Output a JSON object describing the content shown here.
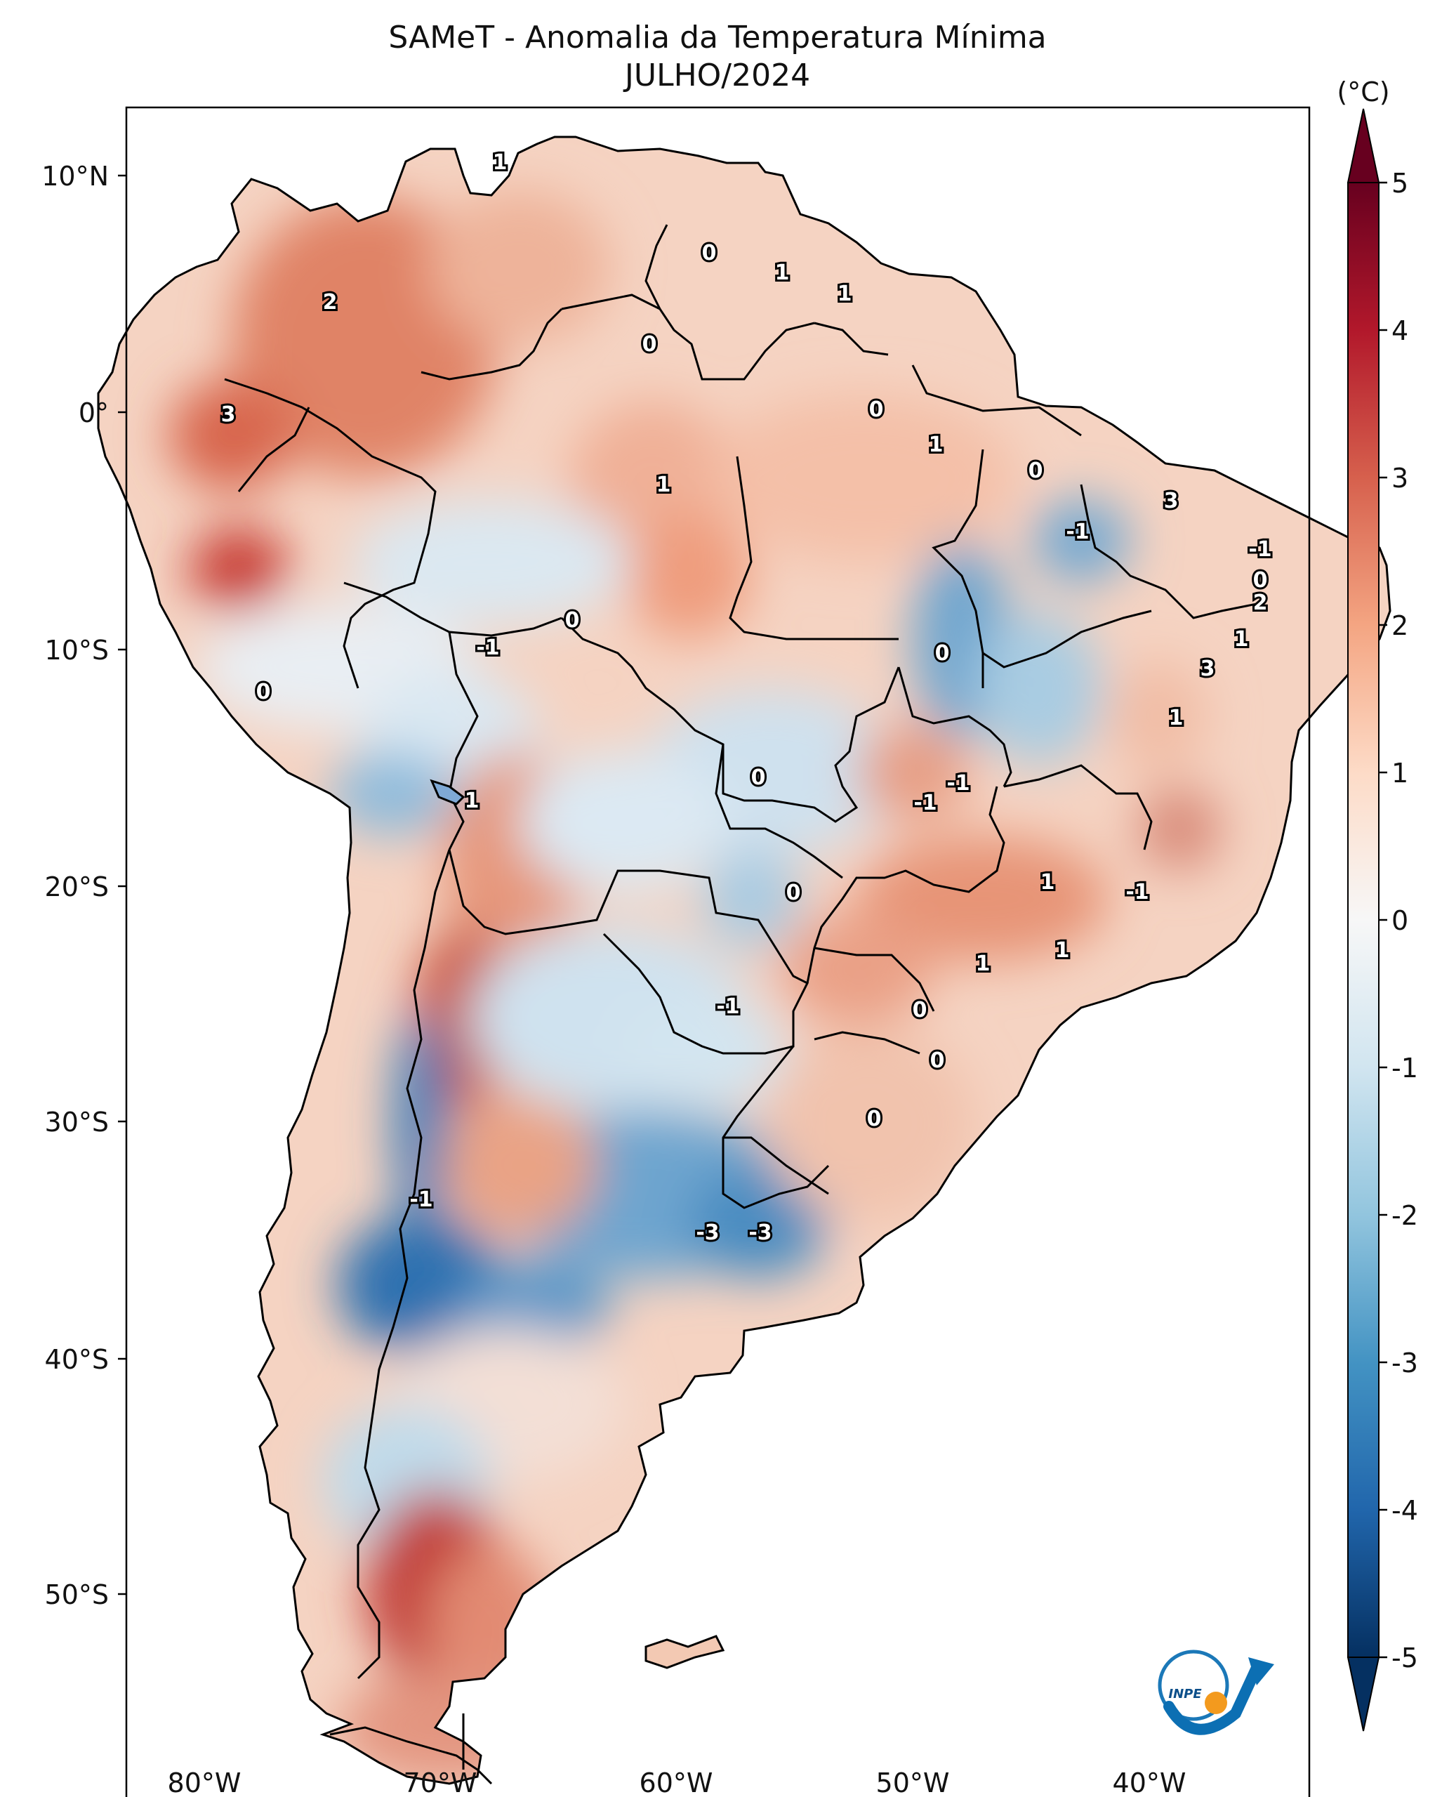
{
  "title": "SAMeT - Anomalia da Temperatura Mínima",
  "subtitle": "JULHO/2024",
  "colorbar": {
    "unit_label": "(°C)",
    "ticks": [
      "5",
      "4",
      "3",
      "2",
      "1",
      "0",
      "-1",
      "-2",
      "-3",
      "-4",
      "-5"
    ],
    "range": [
      -5,
      5
    ],
    "colors": [
      "#053061",
      "#2166ac",
      "#4393c3",
      "#92c5de",
      "#d1e5f0",
      "#f7f7f7",
      "#fddbc7",
      "#f4a582",
      "#d6604d",
      "#b2182b",
      "#67001f"
    ]
  },
  "axes": {
    "lat_ticks": [
      "10°N",
      "0°",
      "10°S",
      "20°S",
      "30°S",
      "40°S",
      "50°S"
    ],
    "lon_ticks": [
      "80°W",
      "70°W",
      "60°W",
      "50°W",
      "40°W"
    ]
  },
  "contour_labels": [
    "1",
    "0",
    "1",
    "1",
    "0",
    "2",
    "3",
    "0",
    "1",
    "1",
    "0",
    "3",
    "-1",
    "-1",
    "0",
    "2",
    "0",
    "-1",
    "1",
    "1",
    "3",
    "0",
    "1",
    "0",
    "-1",
    "-1",
    "1",
    "0",
    "1",
    "-1",
    "0",
    "1",
    "0",
    "-1",
    "0",
    "0",
    "-1",
    "-3",
    "-3"
  ],
  "logo": {
    "name": "INPE",
    "text": "INPE"
  }
}
